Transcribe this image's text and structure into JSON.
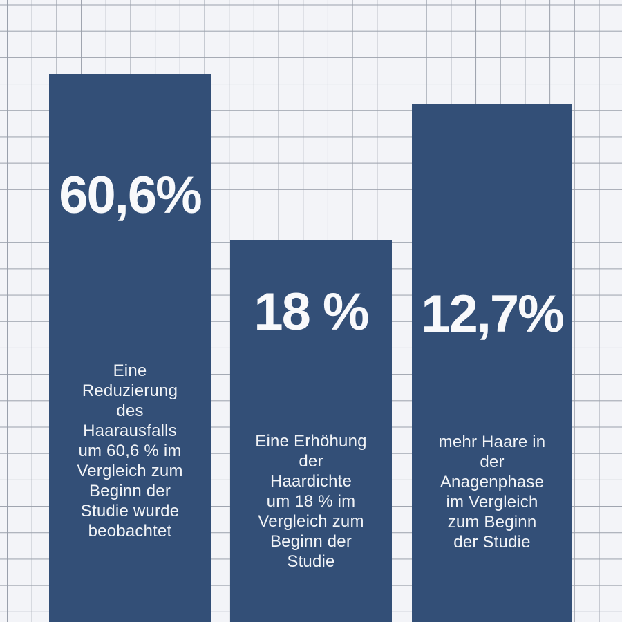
{
  "chart_data": {
    "type": "bar",
    "orientation": "vertical",
    "grid": "graph-paper background",
    "legend": false,
    "axes_visible": false,
    "bar_color": "#334F77",
    "text_color": "#F6F7F9",
    "background_color": "#F3F4F8",
    "grid_line_color": "#9AA0AB",
    "categories": [
      "Reduzierung des Haarausfalls",
      "Erhöhung der Haardichte",
      "Haare in der Anagenphase"
    ],
    "values": [
      60.6,
      18,
      12.7
    ],
    "value_labels": [
      "60,6%",
      "18 %",
      "12,7%"
    ],
    "descriptions": [
      "Eine Reduzierung des Haarausfalls um 60,6 % im Vergleich zum Beginn der Studie wurde beobachtet",
      "Eine Erhöhung der Haardichte um 18 % im Vergleich zum Beginn der Studie",
      "mehr Haare in der Anagenphase im Vergleich zum Beginn der Studie"
    ]
  },
  "bars": [
    {
      "headline": "60,6%",
      "body": "Eine\nReduzierung\ndes\nHaarausfalls\num 60,6 % im\nVergleich zum\nBeginn der\nStudie wurde\nbeobachtet"
    },
    {
      "headline": "18 %",
      "body": "Eine Erhöhung\nder\nHaardichte\num 18 % im\nVergleich zum\nBeginn der\nStudie"
    },
    {
      "headline": "12,7%",
      "body": "mehr Haare in\nder\nAnagenphase\nim Vergleich\nzum Beginn\nder Studie"
    }
  ]
}
